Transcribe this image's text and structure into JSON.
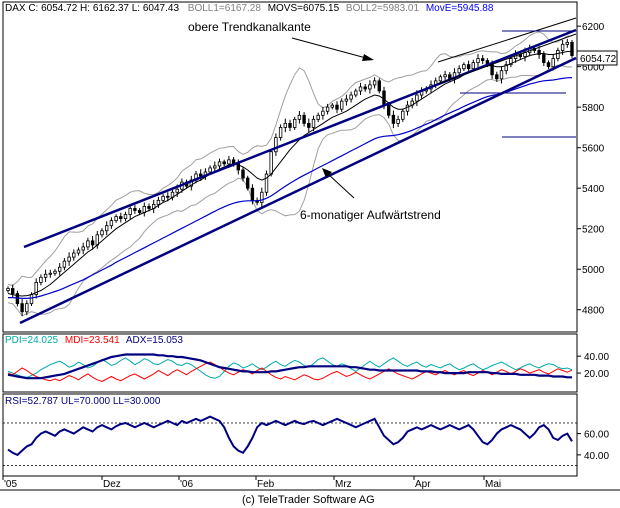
{
  "header": {
    "dax": "DAX C: 6054.72  H: 6162.37  L: 6047.43",
    "boll1": "BOLL1=6167.28",
    "movs": "MOVS=6075.15",
    "boll2": "BOLL2=5983.01",
    "move": "MovE=5945.88"
  },
  "price_badge": "6054.72",
  "annotations": {
    "upper": "obere Trendkanalkante",
    "lower": "6-monatiger Aufwärtstrend"
  },
  "dmi_header": {
    "pdi": "PDI=24.025",
    "mdi": "MDI=23.541",
    "adx": "ADX=15.053"
  },
  "rsi_header": "RSI=52.787  UL=70.000  LL=30.000",
  "footer": "(c) TeleTrader Software AG",
  "colors": {
    "background": "#ffffff",
    "candle": "#000000",
    "bollinger": "#a0a0a0",
    "movs": "#000000",
    "move": "#0000cc",
    "pdi": "#00aaaa",
    "mdi": "#ff0000",
    "adx": "#000080",
    "rsi": "#000080",
    "header_move": "#0000ff"
  },
  "chart_data": [
    {
      "type": "candlestick",
      "title": "DAX",
      "ylim": [
        4700,
        6260
      ],
      "yticks": [
        4800,
        5000,
        5200,
        5400,
        5600,
        5800,
        6000,
        6200
      ],
      "x_labels": [
        "'05",
        "Dez",
        "'06",
        "Feb",
        "Mrz",
        "Apr",
        "Mai"
      ],
      "close": [
        4905,
        4880,
        4830,
        4790,
        4830,
        4875,
        4935,
        4960,
        4975,
        4980,
        4990,
        5010,
        5040,
        5060,
        5080,
        5095,
        5110,
        5140,
        5120,
        5170,
        5190,
        5215,
        5240,
        5260,
        5250,
        5270,
        5300,
        5290,
        5280,
        5310,
        5300,
        5320,
        5340,
        5360,
        5355,
        5380,
        5395,
        5430,
        5410,
        5440,
        5470,
        5460,
        5480,
        5500,
        5510,
        5530,
        5520,
        5540,
        5520,
        5490,
        5450,
        5400,
        5340,
        5330,
        5380,
        5470,
        5580,
        5650,
        5700,
        5720,
        5700,
        5740,
        5760,
        5720,
        5700,
        5740,
        5760,
        5780,
        5800,
        5810,
        5790,
        5830,
        5840,
        5860,
        5880,
        5900,
        5890,
        5910,
        5930,
        5880,
        5810,
        5760,
        5720,
        5740,
        5780,
        5810,
        5830,
        5860,
        5880,
        5890,
        5910,
        5930,
        5950,
        5960,
        5940,
        5970,
        5990,
        6010,
        5990,
        6020,
        6040,
        6030,
        6010,
        5960,
        5940,
        5980,
        6010,
        6040,
        6060,
        6050,
        6070,
        6090,
        6080,
        6060,
        6020,
        6000,
        6040,
        6080,
        6110,
        6120,
        6054.72
      ],
      "ma_simple": [
        4880,
        4875,
        4870,
        4868,
        4870,
        4875,
        4885,
        4895,
        4910,
        4925,
        4945,
        4965,
        4985,
        5005,
        5025,
        5045,
        5065,
        5085,
        5100,
        5120,
        5140,
        5160,
        5180,
        5200,
        5215,
        5230,
        5245,
        5260,
        5270,
        5280,
        5290,
        5300,
        5315,
        5330,
        5340,
        5355,
        5370,
        5385,
        5400,
        5415,
        5430,
        5440,
        5455,
        5470,
        5480,
        5495,
        5505,
        5515,
        5520,
        5515,
        5505,
        5490,
        5470,
        5450,
        5440,
        5450,
        5470,
        5500,
        5530,
        5560,
        5590,
        5615,
        5640,
        5660,
        5675,
        5690,
        5705,
        5720,
        5735,
        5750,
        5760,
        5770,
        5780,
        5795,
        5810,
        5825,
        5840,
        5850,
        5860,
        5855,
        5840,
        5820,
        5800,
        5790,
        5790,
        5800,
        5810,
        5825,
        5840,
        5855,
        5870,
        5885,
        5900,
        5915,
        5925,
        5935,
        5945,
        5960,
        5970,
        5980,
        5990,
        6000,
        6005,
        6005,
        6000,
        6000,
        6005,
        6015,
        6025,
        6035,
        6045,
        6055,
        6060,
        6065,
        6065,
        6060,
        6060,
        6065,
        6070,
        6075,
        6075.15
      ],
      "ma_exp": [
        4860,
        4860,
        4858,
        4856,
        4856,
        4858,
        4862,
        4868,
        4875,
        4882,
        4890,
        4898,
        4908,
        4918,
        4928,
        4938,
        4948,
        4960,
        4972,
        4984,
        4996,
        5008,
        5020,
        5034,
        5046,
        5058,
        5070,
        5082,
        5094,
        5106,
        5118,
        5130,
        5142,
        5154,
        5166,
        5178,
        5190,
        5202,
        5214,
        5226,
        5238,
        5250,
        5262,
        5274,
        5286,
        5298,
        5308,
        5318,
        5326,
        5332,
        5336,
        5338,
        5338,
        5338,
        5342,
        5350,
        5362,
        5378,
        5394,
        5410,
        5424,
        5438,
        5452,
        5464,
        5476,
        5488,
        5500,
        5512,
        5524,
        5536,
        5548,
        5560,
        5572,
        5584,
        5596,
        5608,
        5620,
        5632,
        5644,
        5652,
        5656,
        5658,
        5660,
        5664,
        5670,
        5678,
        5686,
        5696,
        5706,
        5716,
        5726,
        5738,
        5750,
        5762,
        5772,
        5782,
        5792,
        5804,
        5814,
        5824,
        5834,
        5844,
        5852,
        5858,
        5862,
        5868,
        5874,
        5882,
        5890,
        5898,
        5906,
        5914,
        5920,
        5926,
        5930,
        5932,
        5934,
        5938,
        5942,
        5945,
        5945.88
      ]
    },
    {
      "type": "line",
      "title": "DMI",
      "ylim": [
        0,
        52
      ],
      "yticks": [
        20,
        40
      ],
      "series": [
        {
          "name": "PDI",
          "values": [
            22,
            20,
            18,
            16,
            15,
            17,
            20,
            24,
            27,
            30,
            32,
            34,
            31,
            27,
            29,
            33,
            30,
            26,
            28,
            32,
            36,
            33,
            29,
            31,
            35,
            38,
            34,
            30,
            33,
            37,
            35,
            31,
            30,
            33,
            36,
            34,
            30,
            29,
            32,
            30,
            26,
            22,
            18,
            15,
            14,
            16,
            22,
            28,
            32,
            30,
            26,
            28,
            31,
            27,
            24,
            27,
            31,
            34,
            30,
            28,
            32,
            35,
            33,
            29,
            27,
            31,
            36,
            38,
            34,
            30,
            28,
            31,
            29,
            25,
            22,
            26,
            30,
            34,
            30,
            27,
            31,
            35,
            38,
            34,
            30,
            28,
            31,
            33,
            29,
            27,
            30,
            28,
            26,
            29,
            31,
            27,
            24,
            26,
            29,
            31,
            27,
            24,
            26,
            29,
            31,
            33,
            30,
            27,
            24,
            26,
            29,
            31,
            28,
            26,
            29,
            31,
            30,
            27,
            25,
            26,
            24.025
          ]
        },
        {
          "name": "MDI",
          "values": [
            20,
            18,
            22,
            26,
            23,
            19,
            16,
            14,
            12,
            11,
            13,
            11,
            14,
            17,
            15,
            12,
            16,
            19,
            15,
            12,
            10,
            13,
            16,
            13,
            11,
            14,
            17,
            19,
            16,
            13,
            16,
            19,
            23,
            20,
            17,
            21,
            24,
            21,
            18,
            22,
            25,
            28,
            31,
            33,
            30,
            27,
            23,
            20,
            18,
            21,
            24,
            22,
            19,
            23,
            26,
            22,
            18,
            15,
            13,
            16,
            14,
            12,
            15,
            18,
            16,
            13,
            12,
            14,
            17,
            20,
            22,
            19,
            16,
            18,
            21,
            18,
            15,
            13,
            16,
            19,
            22,
            25,
            22,
            19,
            17,
            15,
            13,
            16,
            19,
            22,
            20,
            18,
            21,
            23,
            20,
            18,
            21,
            23,
            19,
            17,
            20,
            23,
            21,
            18,
            21,
            24,
            22,
            19,
            22,
            25,
            23,
            20,
            22,
            24,
            21,
            19,
            22,
            25,
            23,
            21,
            23.541
          ]
        },
        {
          "name": "ADX",
          "values": [
            18,
            17,
            16,
            15,
            14,
            14,
            14,
            14,
            15,
            16,
            17,
            18,
            19,
            21,
            23,
            25,
            27,
            29,
            31,
            33,
            35,
            37,
            39,
            40,
            41,
            42,
            42,
            42,
            42,
            42,
            42,
            42,
            41,
            41,
            40,
            40,
            39,
            39,
            38,
            37,
            36,
            35,
            33,
            31,
            29,
            27,
            26,
            25,
            24,
            23,
            22,
            22,
            21,
            21,
            21,
            21,
            22,
            22,
            23,
            24,
            25,
            26,
            27,
            27,
            28,
            28,
            28,
            28,
            28,
            28,
            28,
            28,
            28,
            27,
            27,
            26,
            25,
            24,
            24,
            23,
            23,
            23,
            23,
            23,
            23,
            23,
            23,
            23,
            22,
            22,
            22,
            21,
            21,
            20,
            20,
            20,
            20,
            20,
            21,
            21,
            21,
            21,
            21,
            20,
            20,
            19,
            19,
            19,
            19,
            18,
            18,
            18,
            18,
            17,
            17,
            17,
            16,
            16,
            16,
            15,
            15.053
          ]
        }
      ]
    },
    {
      "type": "line",
      "title": "RSI",
      "ylim": [
        22,
        86
      ],
      "yticks": [
        40,
        60
      ],
      "ul": 70,
      "ll": 30,
      "series": [
        {
          "name": "RSI",
          "values": [
            45,
            42,
            40,
            44,
            48,
            50,
            56,
            60,
            62,
            60,
            58,
            62,
            64,
            62,
            60,
            63,
            66,
            64,
            62,
            66,
            68,
            66,
            64,
            67,
            69,
            70,
            68,
            66,
            68,
            70,
            68,
            66,
            68,
            70,
            72,
            70,
            68,
            72,
            70,
            72,
            74,
            72,
            74,
            76,
            74,
            72,
            66,
            56,
            48,
            44,
            42,
            48,
            56,
            66,
            70,
            68,
            70,
            72,
            70,
            68,
            70,
            72,
            70,
            69,
            71,
            72,
            70,
            68,
            70,
            72,
            74,
            72,
            70,
            68,
            66,
            68,
            70,
            72,
            74,
            66,
            58,
            54,
            50,
            52,
            56,
            62,
            64,
            66,
            64,
            66,
            68,
            66,
            64,
            66,
            68,
            66,
            64,
            66,
            68,
            64,
            58,
            52,
            50,
            54,
            60,
            64,
            66,
            68,
            66,
            64,
            60,
            56,
            60,
            66,
            68,
            64,
            56,
            54,
            58,
            60,
            52.787
          ]
        }
      ]
    }
  ]
}
